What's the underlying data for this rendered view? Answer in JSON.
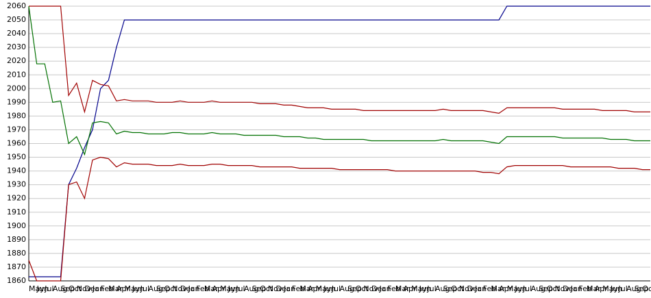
{
  "chart_data": {
    "type": "line",
    "categories": [
      "May",
      "Jun",
      "Jul",
      "Aug",
      "Sep",
      "Oct",
      "Nov",
      "Dec",
      "Jan",
      "Feb",
      "Mar",
      "Apr",
      "May",
      "Jun",
      "Jul",
      "Aug",
      "Sep",
      "Oct",
      "Nov",
      "Dec",
      "Jan",
      "Feb",
      "Mar",
      "Apr",
      "May",
      "Jun",
      "Jul",
      "Aug",
      "Sep",
      "Oct",
      "Nov",
      "Dec",
      "Jan",
      "Feb",
      "Mar",
      "Apr",
      "May",
      "Jun",
      "Jul",
      "Aug",
      "Sep",
      "Oct",
      "Nov",
      "Dec",
      "Jan",
      "Feb",
      "Mar",
      "Apr",
      "May",
      "Jun",
      "Jul",
      "Aug",
      "Sep",
      "Oct",
      "Nov",
      "Dec",
      "Jan",
      "Feb",
      "Mar",
      "Apr",
      "May",
      "Jun",
      "Jul",
      "Aug",
      "Sep",
      "Oct",
      "Nov",
      "Dec",
      "Jan",
      "Feb",
      "Mar",
      "Apr",
      "May",
      "Jun",
      "Jul",
      "Aug",
      "Sep",
      "Oct",
      "Nov"
    ],
    "series": [
      {
        "color": "#00008b",
        "values": [
          1863,
          1863,
          1863,
          1863,
          1863,
          1930,
          1942,
          1957,
          1970,
          2000,
          2006,
          2030,
          2050,
          2050,
          2050,
          2050,
          2050,
          2050,
          2050,
          2050,
          2050,
          2050,
          2050,
          2050,
          2050,
          2050,
          2050,
          2050,
          2050,
          2050,
          2050,
          2050,
          2050,
          2050,
          2050,
          2050,
          2050,
          2050,
          2050,
          2050,
          2050,
          2050,
          2050,
          2050,
          2050,
          2050,
          2050,
          2050,
          2050,
          2050,
          2050,
          2050,
          2050,
          2050,
          2050,
          2050,
          2050,
          2050,
          2050,
          2050,
          2060,
          2060,
          2060,
          2060,
          2060,
          2060,
          2060,
          2060,
          2060,
          2060,
          2060,
          2060,
          2060,
          2060,
          2060,
          2060,
          2060,
          2060,
          2060
        ]
      },
      {
        "color": "#a00000",
        "values": [
          2060,
          2060,
          2060,
          2060,
          2060,
          1995,
          2004,
          1983,
          2006,
          2003,
          2002,
          1991,
          1992,
          1991,
          1991,
          1991,
          1990,
          1990,
          1990,
          1991,
          1990,
          1990,
          1990,
          1991,
          1990,
          1990,
          1990,
          1990,
          1990,
          1989,
          1989,
          1989,
          1988,
          1988,
          1987,
          1986,
          1986,
          1986,
          1985,
          1985,
          1985,
          1985,
          1984,
          1984,
          1984,
          1984,
          1984,
          1984,
          1984,
          1984,
          1984,
          1984,
          1985,
          1984,
          1984,
          1984,
          1984,
          1984,
          1983,
          1982,
          1986,
          1986,
          1986,
          1986,
          1986,
          1986,
          1986,
          1985,
          1985,
          1985,
          1985,
          1985,
          1984,
          1984,
          1984,
          1984,
          1983,
          1983,
          1983
        ]
      },
      {
        "color": "#007000",
        "values": [
          2060,
          2018,
          2018,
          1990,
          1991,
          1960,
          1965,
          1952,
          1975,
          1976,
          1975,
          1967,
          1969,
          1968,
          1968,
          1967,
          1967,
          1967,
          1968,
          1968,
          1967,
          1967,
          1967,
          1968,
          1967,
          1967,
          1967,
          1966,
          1966,
          1966,
          1966,
          1966,
          1965,
          1965,
          1965,
          1964,
          1964,
          1963,
          1963,
          1963,
          1963,
          1963,
          1963,
          1962,
          1962,
          1962,
          1962,
          1962,
          1962,
          1962,
          1962,
          1962,
          1963,
          1962,
          1962,
          1962,
          1962,
          1962,
          1961,
          1960,
          1965,
          1965,
          1965,
          1965,
          1965,
          1965,
          1965,
          1964,
          1964,
          1964,
          1964,
          1964,
          1964,
          1963,
          1963,
          1963,
          1962,
          1962,
          1962
        ]
      },
      {
        "color": "#a00000",
        "values": [
          1875,
          1860,
          1860,
          1860,
          1860,
          1930,
          1932,
          1920,
          1948,
          1950,
          1949,
          1943,
          1946,
          1945,
          1945,
          1945,
          1944,
          1944,
          1944,
          1945,
          1944,
          1944,
          1944,
          1945,
          1945,
          1944,
          1944,
          1944,
          1944,
          1943,
          1943,
          1943,
          1943,
          1943,
          1942,
          1942,
          1942,
          1942,
          1942,
          1941,
          1941,
          1941,
          1941,
          1941,
          1941,
          1941,
          1940,
          1940,
          1940,
          1940,
          1940,
          1940,
          1940,
          1940,
          1940,
          1940,
          1940,
          1939,
          1939,
          1938,
          1943,
          1944,
          1944,
          1944,
          1944,
          1944,
          1944,
          1944,
          1943,
          1943,
          1943,
          1943,
          1943,
          1943,
          1942,
          1942,
          1942,
          1941,
          1941
        ]
      }
    ],
    "ylim": [
      1860,
      2060
    ],
    "yticks": [
      1860,
      1870,
      1880,
      1890,
      1900,
      1910,
      1920,
      1930,
      1940,
      1950,
      1960,
      1970,
      1980,
      1990,
      2000,
      2010,
      2020,
      2030,
      2040,
      2050,
      2060
    ],
    "grid": true
  }
}
